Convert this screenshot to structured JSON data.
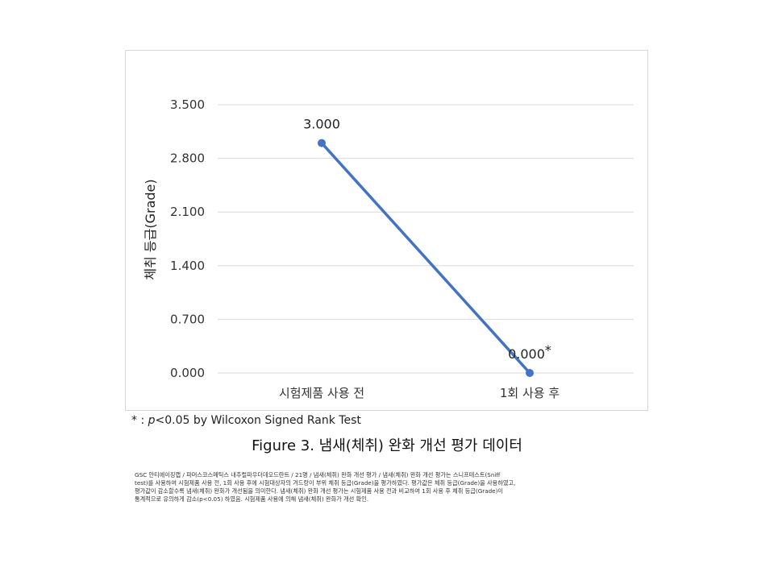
{
  "chart_data": {
    "type": "line",
    "categories": [
      "시험제품 사용 전",
      "1회 사용 후"
    ],
    "series": [
      {
        "values": [
          3.0,
          0.0
        ],
        "data_labels": [
          "3.000",
          "0.000"
        ],
        "annotations": [
          "",
          "*"
        ],
        "color": "#4472c4"
      }
    ],
    "ylabel": "체취 등급(Grade)",
    "xlabel": "",
    "ylim": [
      0,
      3.5
    ],
    "yticks": [
      0,
      0.7,
      1.4,
      2.1,
      2.8,
      3.5
    ],
    "ytick_labels": [
      "0.000",
      "0.700",
      "1.400",
      "2.100",
      "2.800",
      "3.500"
    ],
    "grid": true,
    "gridline_color": "#d9d9d9",
    "legend": "none"
  },
  "footnote": {
    "prefix": "* : ",
    "p_symbol": "p",
    "text": "<0.05 by Wilcoxon Signed Rank Test"
  },
  "caption": "Figure 3. 냄새(체취) 완화 개선 평가 데이터",
  "description_lines": [
    "GSC 안티에이징랩 / 파머스코스메틱스 내추럴파우더데오드란트 / 21명 / 냄새(체취) 완화 개선 평가 / 냄새(체취) 완화 개선 평가는 스니프테스트(Sniff",
    "test)를 사용하여 시험제품 사용 전, 1회 사용 후에 시험대상자의 겨드랑이 부위 체취 등급(Grade)을 평가하였다. 평가값은 체취 등급(Grade)을 사용하였고,",
    "평가값이 감소할수록 냄새(체취) 완화가 개선됨을 의미한다. 냄새(체취) 완화 개선 평가는 시험제품 사용 전과 비교하여 1회 사용 후 체취 등급(Grade)이",
    "통계적으로 유의하게 감소(p<0.05) 하였음. 시험제품 사용에 의해 냄새(체취) 완화가 개선 확인."
  ]
}
